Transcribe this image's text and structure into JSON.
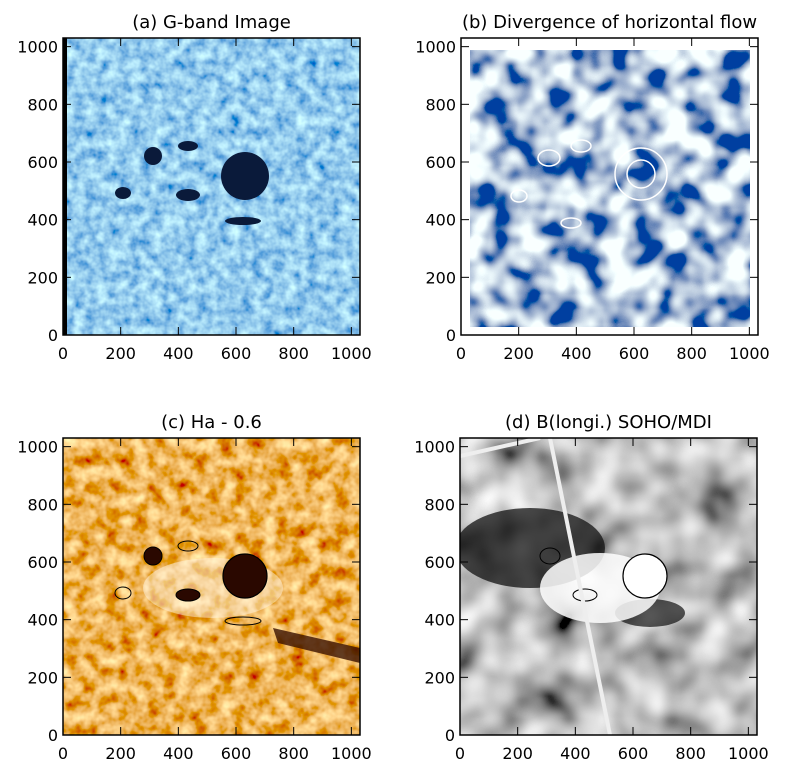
{
  "chart_data": [
    {
      "type": "image",
      "title": "(a) G-band Image",
      "xlim": [
        0,
        1030
      ],
      "ylim": [
        0,
        1030
      ],
      "xticks": [
        0,
        200,
        400,
        600,
        800,
        1000
      ],
      "yticks": [
        0,
        200,
        400,
        600,
        800,
        1000
      ]
    },
    {
      "type": "image",
      "title": "(b) Divergence of horizontal flow",
      "xlim": [
        0,
        1030
      ],
      "ylim": [
        0,
        1030
      ],
      "xticks": [
        0,
        200,
        400,
        600,
        800,
        1000
      ],
      "yticks": [
        0,
        200,
        400,
        600,
        800,
        1000
      ]
    },
    {
      "type": "image",
      "title": "(c) Ha - 0.6",
      "xlim": [
        0,
        1030
      ],
      "ylim": [
        0,
        1030
      ],
      "xticks": [
        0,
        200,
        400,
        600,
        800,
        1000
      ],
      "yticks": [
        0,
        200,
        400,
        600,
        800,
        1000
      ]
    },
    {
      "type": "image",
      "title": "(d) B(longi.) SOHO/MDI",
      "xlim": [
        0,
        1030
      ],
      "ylim": [
        0,
        1030
      ],
      "xticks": [
        0,
        200,
        400,
        600,
        800,
        1000
      ],
      "yticks": [
        0,
        200,
        400,
        600,
        800,
        1000
      ]
    }
  ]
}
